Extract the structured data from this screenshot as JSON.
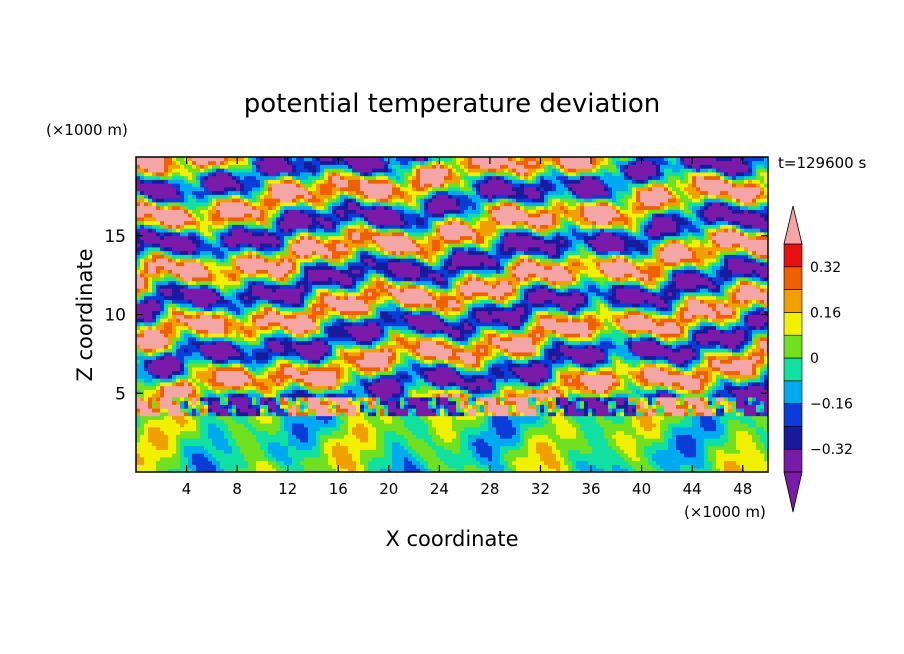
{
  "chart_data": {
    "type": "heatmap",
    "title": "potential temperature deviation",
    "xlabel": "X coordinate",
    "ylabel": "Z coordinate",
    "x_unit": "(×1000 m)",
    "y_unit": "(×1000 m)",
    "time_label": "t=129600 s",
    "xlim": [
      0,
      50
    ],
    "ylim": [
      0,
      20
    ],
    "x_ticks": [
      "4",
      "8",
      "12",
      "16",
      "20",
      "24",
      "28",
      "32",
      "36",
      "40",
      "44",
      "48"
    ],
    "y_ticks": [
      "5",
      "10",
      "15"
    ],
    "colorbar": {
      "labels": [
        "0.32",
        "0.16",
        "0",
        "−0.16",
        "−0.32"
      ],
      "label_values": [
        0.32,
        0.16,
        0,
        -0.16,
        -0.32
      ],
      "levels": [
        -0.4,
        -0.32,
        -0.24,
        -0.16,
        -0.08,
        0,
        0.08,
        0.16,
        0.24,
        0.32,
        0.4
      ],
      "colors": [
        "#7a1aa8",
        "#1a1a9c",
        "#0a3cd8",
        "#00aaf0",
        "#10e0a0",
        "#70e020",
        "#f0f000",
        "#f0a000",
        "#f06000",
        "#e81010",
        "#f4a6a6"
      ]
    },
    "field": {
      "transition_z": 3.5,
      "band_z": [
        3.5,
        4.8
      ],
      "description_levels": "lower layer weak anomalies, upper layer strong banded anomalies"
    }
  }
}
